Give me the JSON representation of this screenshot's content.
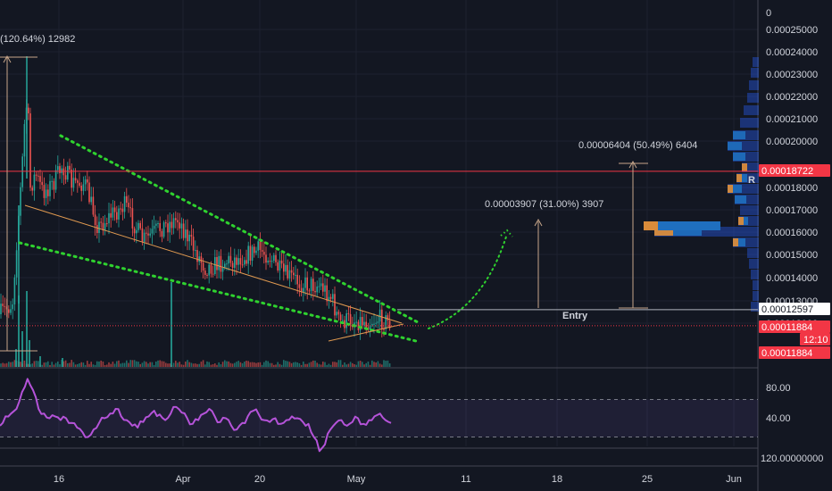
{
  "chart_data": {
    "type": "candlestick",
    "price_axis": {
      "ticks": [
        "0",
        "0.00025000",
        "0.00024000",
        "0.00023000",
        "0.00022000",
        "0.00021000",
        "0.00020000",
        "0.00018000",
        "0.00017000",
        "0.00016000",
        "0.00015000",
        "0.00014000",
        "0.00013000",
        "0.00012000"
      ],
      "ylim": [
        0.000115,
        0.000254
      ]
    },
    "time_axis": {
      "ticks": [
        "16",
        "Apr",
        "20",
        "May",
        "11",
        "18",
        "25",
        "Jun"
      ]
    },
    "price_tags": [
      {
        "label": "0.00018722",
        "value": 0.00018722,
        "color": "#f23645"
      },
      {
        "label": "0.00012597",
        "value": 0.00012597,
        "color": "#ffffff"
      },
      {
        "label": "0.00011884",
        "value": 0.00011884,
        "color": "#f23645"
      },
      {
        "label": "12:10",
        "value": 0.0001165,
        "color": "#f23645"
      },
      {
        "label": "0.00011884",
        "value": 0.0001145,
        "color": "#f23645"
      }
    ],
    "annotations": {
      "measure_top_left": "(120.64%) 12982",
      "target_1": "0.00003907 (31.00%) 3907",
      "target_2": "0.00006404 (50.49%) 6404",
      "entry_label": "Entry",
      "volume_profile_marker": "R"
    },
    "rsi": {
      "ticks": [
        "80.00",
        "40.00"
      ],
      "bottom_label": "120.00000000",
      "ylim": [
        20,
        100
      ],
      "upper_band": 70,
      "lower_band": 30,
      "values": [
        42,
        52,
        55,
        60,
        78,
        92,
        80,
        60,
        55,
        50,
        52,
        48,
        50,
        45,
        40,
        35,
        30,
        38,
        45,
        50,
        55,
        60,
        52,
        48,
        42,
        40,
        46,
        52,
        58,
        54,
        48,
        55,
        62,
        56,
        50,
        44,
        48,
        55,
        60,
        52,
        46,
        50,
        42,
        38,
        45,
        52,
        58,
        54,
        48,
        46,
        50,
        44,
        48,
        52,
        50,
        46,
        44,
        30,
        15,
        22,
        38,
        45,
        48,
        42,
        46,
        50,
        44,
        48,
        52,
        55,
        48,
        45
      ]
    },
    "colors": {
      "up": "#26a69a",
      "down": "#ef5350",
      "background": "#131722",
      "rsi_line": "#b553d9",
      "pattern": "#2fd22f",
      "trend": "#e09a50"
    }
  }
}
